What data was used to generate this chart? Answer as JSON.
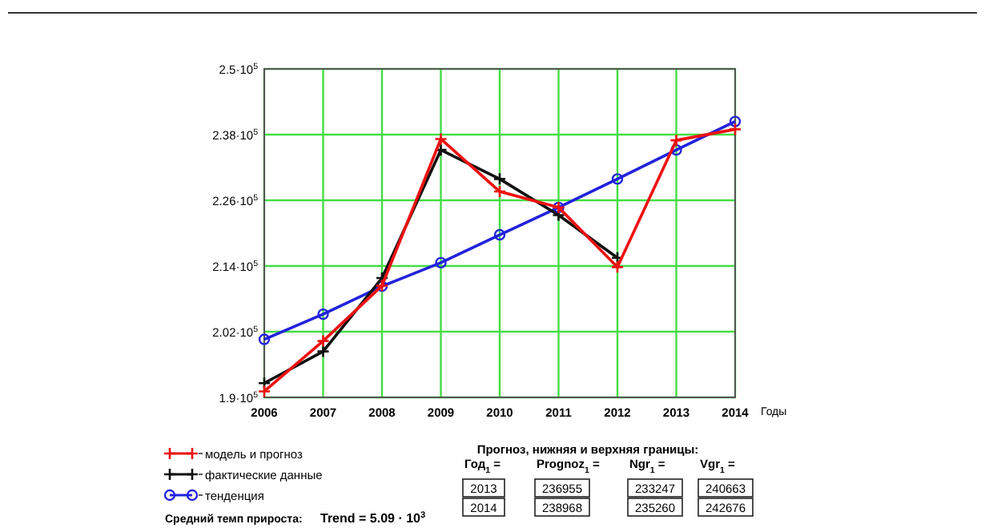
{
  "chart_data": {
    "type": "line",
    "xlabel": "Годы",
    "x": [
      2006,
      2007,
      2008,
      2009,
      2010,
      2011,
      2012,
      2013,
      2014
    ],
    "xlim": [
      2006,
      2014
    ],
    "xticks": [
      2006,
      2007,
      2008,
      2009,
      2010,
      2011,
      2012,
      2013,
      2014
    ],
    "ylim": [
      190000,
      250000
    ],
    "yticks": [
      {
        "value": 190000,
        "label": "1.9·10$^{5}$"
      },
      {
        "value": 202000,
        "label": "2.02·10$^{5}$"
      },
      {
        "value": 214000,
        "label": "2.14·10$^{5}$"
      },
      {
        "value": 226000,
        "label": "2.26·10$^{5}$"
      },
      {
        "value": 238000,
        "label": "2.38·10$^{5}$"
      },
      {
        "value": 250000,
        "label": "2.5·10$^{5}$"
      }
    ],
    "grid": true,
    "legend": "bottom left",
    "series": [
      {
        "name": "модель и прогноз",
        "color": "#ee1111",
        "marker": "cross",
        "values": [
          191100,
          200300,
          210400,
          237200,
          227600,
          224700,
          213800,
          236955,
          238968
        ]
      },
      {
        "name": "фактические данные",
        "color": "#111111",
        "marker": "cross",
        "values": [
          192600,
          198400,
          211800,
          235200,
          229900,
          223300,
          215500,
          null,
          null
        ]
      },
      {
        "name": "тенденция",
        "color": "#2222dd",
        "marker": "circle",
        "values": [
          200600,
          205200,
          210300,
          214600,
          219700,
          224700,
          229900,
          235200,
          240400
        ]
      }
    ],
    "annotations": [
      "Прогноз, нижняя и верхняя границы:",
      "Год$_{1}$ =",
      "Prognoz$_{1}$ =",
      "Ngr$_{1}$ =",
      "Vgr$_{1}$ =",
      "2013",
      "236955",
      "233247",
      "240663",
      "2014",
      "238968",
      "235260",
      "242676",
      "Средний темп прироста:",
      "Trend = 5.09 · 10$^{3}$"
    ]
  }
}
